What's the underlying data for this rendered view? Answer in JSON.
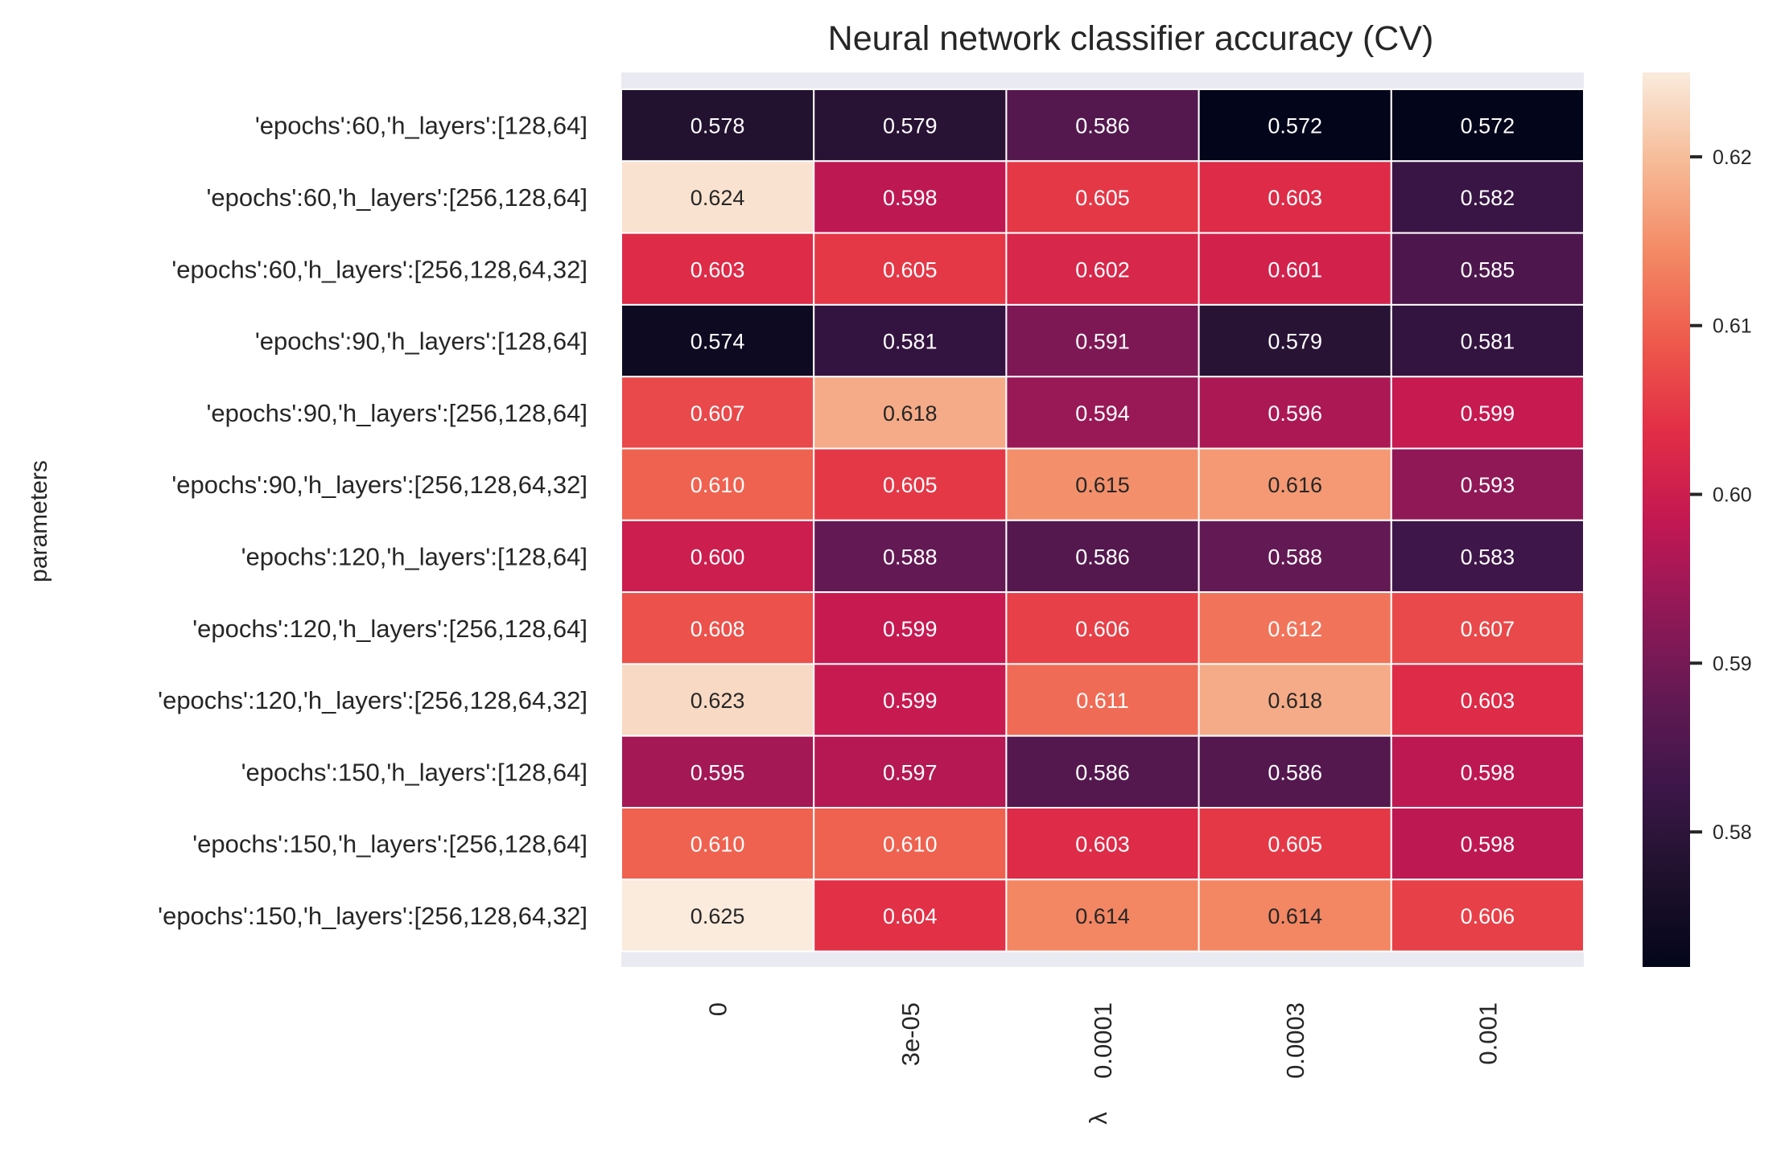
{
  "chart_data": {
    "type": "heatmap",
    "title": "Neural network classifier accuracy (CV)",
    "xlabel": "λ",
    "ylabel": "parameters",
    "x_categories": [
      "0",
      "3e-05",
      "0.0001",
      "0.0003",
      "0.001"
    ],
    "y_categories": [
      "'epochs':60,'h_layers':[128,64]",
      "'epochs':60,'h_layers':[256,128,64]",
      "'epochs':60,'h_layers':[256,128,64,32]",
      "'epochs':90,'h_layers':[128,64]",
      "'epochs':90,'h_layers':[256,128,64]",
      "'epochs':90,'h_layers':[256,128,64,32]",
      "'epochs':120,'h_layers':[128,64]",
      "'epochs':120,'h_layers':[256,128,64]",
      "'epochs':120,'h_layers':[256,128,64,32]",
      "'epochs':150,'h_layers':[128,64]",
      "'epochs':150,'h_layers':[256,128,64]",
      "'epochs':150,'h_layers':[256,128,64,32]"
    ],
    "values": [
      [
        0.578,
        0.579,
        0.586,
        0.572,
        0.572
      ],
      [
        0.624,
        0.598,
        0.605,
        0.603,
        0.582
      ],
      [
        0.603,
        0.605,
        0.602,
        0.601,
        0.585
      ],
      [
        0.574,
        0.581,
        0.591,
        0.579,
        0.581
      ],
      [
        0.607,
        0.618,
        0.594,
        0.596,
        0.599
      ],
      [
        0.61,
        0.605,
        0.615,
        0.616,
        0.593
      ],
      [
        0.6,
        0.588,
        0.586,
        0.588,
        0.583
      ],
      [
        0.608,
        0.599,
        0.606,
        0.612,
        0.607
      ],
      [
        0.623,
        0.599,
        0.611,
        0.618,
        0.603
      ],
      [
        0.595,
        0.597,
        0.586,
        0.586,
        0.598
      ],
      [
        0.61,
        0.61,
        0.603,
        0.605,
        0.598
      ],
      [
        0.625,
        0.604,
        0.614,
        0.614,
        0.606
      ]
    ],
    "value_labels": [
      [
        "0.578",
        "0.579",
        "0.586",
        "0.572",
        "0.572"
      ],
      [
        "0.624",
        "0.598",
        "0.605",
        "0.603",
        "0.582"
      ],
      [
        "0.603",
        "0.605",
        "0.602",
        "0.601",
        "0.585"
      ],
      [
        "0.574",
        "0.581",
        "0.591",
        "0.579",
        "0.581"
      ],
      [
        "0.607",
        "0.618",
        "0.594",
        "0.596",
        "0.599"
      ],
      [
        "0.610",
        "0.605",
        "0.615",
        "0.616",
        "0.593"
      ],
      [
        "0.600",
        "0.588",
        "0.586",
        "0.588",
        "0.583"
      ],
      [
        "0.608",
        "0.599",
        "0.606",
        "0.612",
        "0.607"
      ],
      [
        "0.623",
        "0.599",
        "0.611",
        "0.618",
        "0.603"
      ],
      [
        "0.595",
        "0.597",
        "0.586",
        "0.586",
        "0.598"
      ],
      [
        "0.610",
        "0.610",
        "0.603",
        "0.605",
        "0.598"
      ],
      [
        "0.625",
        "0.604",
        "0.614",
        "0.614",
        "0.606"
      ]
    ],
    "colorscale": "rocket",
    "color_range": [
      0.572,
      0.625
    ],
    "colorbar_ticks": [
      0.58,
      0.59,
      0.6,
      0.61,
      0.62
    ],
    "colorbar_tick_labels": [
      "0.58",
      "0.59",
      "0.60",
      "0.61",
      "0.62"
    ],
    "cell_border_color": "#ffffff",
    "axes_background": "#eaeaf2",
    "grid": false
  }
}
